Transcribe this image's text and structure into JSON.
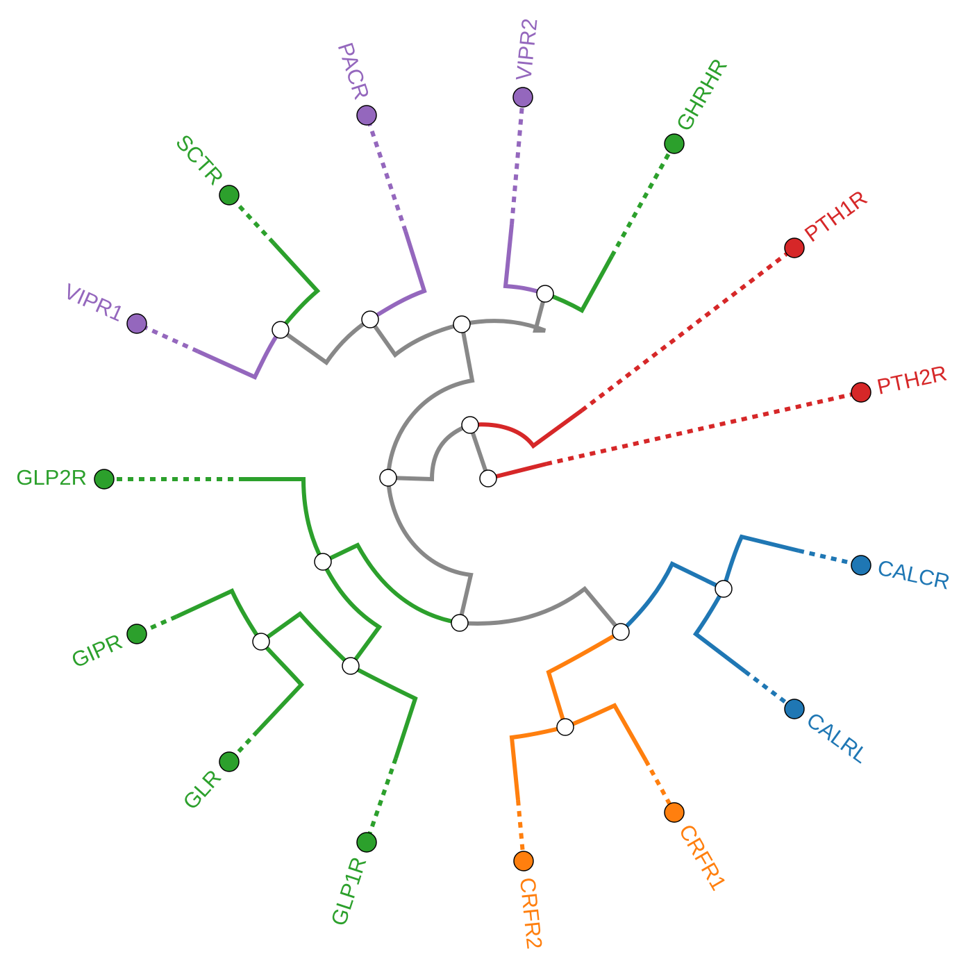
{
  "diagram": {
    "type": "circular phylogenetic tree",
    "colors": {
      "backbone": "#888888",
      "purple": "#9467bd",
      "green": "#2ca02c",
      "red": "#d62728",
      "blue": "#1f77b4",
      "orange": "#ff7f0e"
    },
    "leaves": [
      {
        "id": "PTH2R",
        "label": "PTH2R",
        "color": "red"
      },
      {
        "id": "PTH1R",
        "label": "PTH1R",
        "color": "red"
      },
      {
        "id": "GHRHR",
        "label": "GHRHR",
        "color": "green"
      },
      {
        "id": "VIPR2",
        "label": "VIPR2",
        "color": "purple"
      },
      {
        "id": "PACR",
        "label": "PACR",
        "color": "purple"
      },
      {
        "id": "SCTR",
        "label": "SCTR",
        "color": "green"
      },
      {
        "id": "VIPR1",
        "label": "VIPR1",
        "color": "purple"
      },
      {
        "id": "GLP2R",
        "label": "GLP2R",
        "color": "green"
      },
      {
        "id": "GIPR",
        "label": "GIPR",
        "color": "green"
      },
      {
        "id": "GLR",
        "label": "GLR",
        "color": "green"
      },
      {
        "id": "GLP1R",
        "label": "GLP1R",
        "color": "green"
      },
      {
        "id": "CRFR2",
        "label": "CRFR2",
        "color": "orange"
      },
      {
        "id": "CRFR1",
        "label": "CRFR1",
        "color": "orange"
      },
      {
        "id": "CALRL",
        "label": "CALRL",
        "color": "blue"
      },
      {
        "id": "CALCR",
        "label": "CALCR",
        "color": "blue"
      }
    ]
  }
}
